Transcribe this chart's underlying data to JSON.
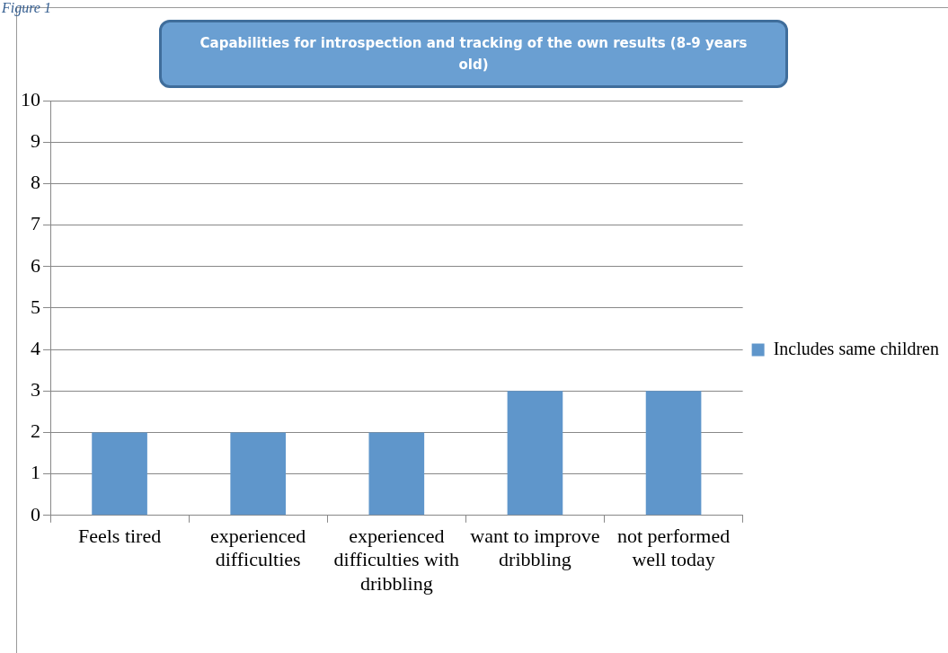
{
  "chart_data": {
    "type": "bar",
    "title": "Capabilities for introspection and tracking of the own results (8-9 years old)",
    "annotations": [
      "Figure 1"
    ],
    "categories": [
      "Feels tired",
      "experienced difficulties",
      "experienced difficulties with dribbling",
      "want to improve dribbling",
      "not performed well today"
    ],
    "series": [
      {
        "name": "Includes same children",
        "color": "#5f96cb",
        "values": [
          2,
          2,
          2,
          3,
          3
        ]
      }
    ],
    "ylim": [
      0,
      10
    ],
    "yticks": [
      0,
      1,
      2,
      3,
      4,
      5,
      6,
      7,
      8,
      9,
      10
    ],
    "grid": "y",
    "legend": "right"
  }
}
